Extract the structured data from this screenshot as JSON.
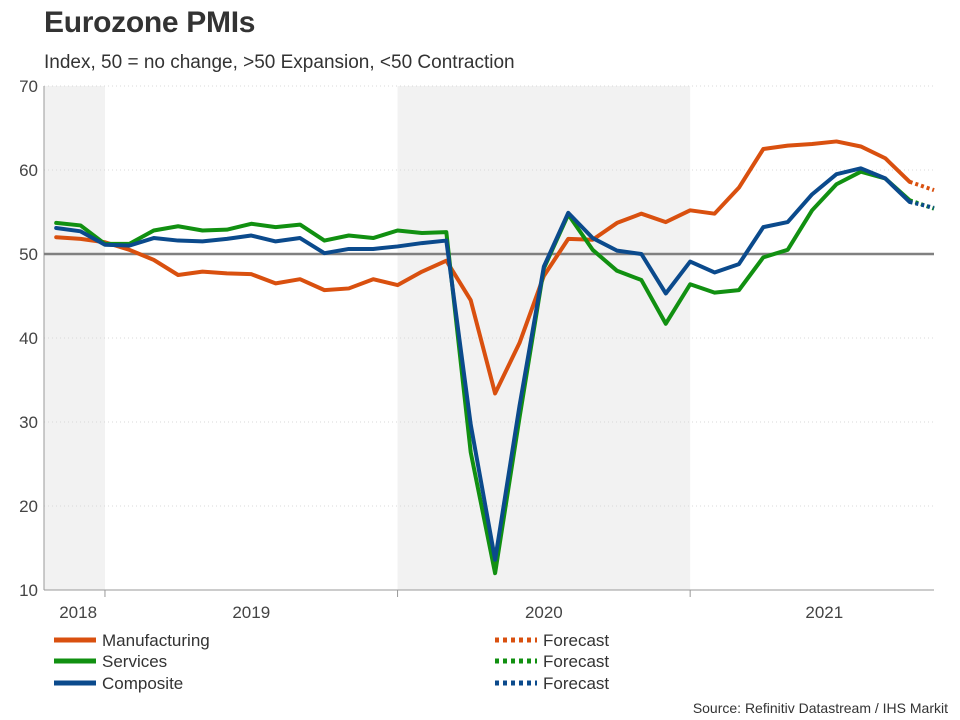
{
  "title": "Eurozone PMIs",
  "subtitle": "Index, 50 = no change, >50 Expansion, <50 Contraction",
  "source": "Source: Refinitiv Datastream / IHS Markit",
  "colors": {
    "manufacturing": "#d9500f",
    "services": "#119011",
    "composite": "#0b4a8c",
    "shading": "#f2f2f2",
    "reference_line": "#808080"
  },
  "chart_data": {
    "type": "line",
    "title": "Eurozone PMIs",
    "subtitle": "Index, 50 = no change, >50 Expansion, <50 Contraction",
    "xlabel": "",
    "ylabel": "",
    "ylim": [
      10,
      70
    ],
    "yticks": [
      10,
      20,
      30,
      40,
      50,
      60,
      70
    ],
    "x_start": "2018-10",
    "x_range_months": [
      0,
      36.5
    ],
    "year_labels": [
      {
        "label": "2018",
        "x": 1.4
      },
      {
        "label": "2019",
        "x": 8.5
      },
      {
        "label": "2020",
        "x": 20.5
      },
      {
        "label": "2021",
        "x": 32.0
      }
    ],
    "year_dividers": [
      2.5,
      14.5,
      26.5
    ],
    "shaded_ranges": [
      [
        0,
        2.5
      ],
      [
        14.5,
        26.5
      ]
    ],
    "reference_line": 50,
    "series": [
      {
        "name": "Manufacturing",
        "key": "manufacturing",
        "values": [
          52.0,
          51.8,
          51.4,
          50.5,
          49.3,
          47.5,
          47.9,
          47.7,
          47.6,
          46.5,
          47.0,
          45.7,
          45.9,
          47.0,
          46.3,
          47.9,
          49.2,
          44.5,
          33.4,
          39.4,
          47.4,
          51.8,
          51.7,
          53.7,
          54.8,
          53.8,
          55.2,
          54.8,
          57.9,
          62.5,
          62.9,
          63.1,
          63.4,
          62.8,
          61.4,
          58.6
        ],
        "forecast": [
          58.6,
          57.6
        ]
      },
      {
        "name": "Services",
        "key": "services",
        "values": [
          53.7,
          53.4,
          51.2,
          51.2,
          52.8,
          53.3,
          52.8,
          52.9,
          53.6,
          53.2,
          53.5,
          51.6,
          52.2,
          51.9,
          52.8,
          52.5,
          52.6,
          26.4,
          12.0,
          30.5,
          48.3,
          54.7,
          50.5,
          48.0,
          46.9,
          41.7,
          46.4,
          45.4,
          45.7,
          49.6,
          50.5,
          55.2,
          58.3,
          59.8,
          59.0,
          56.4
        ],
        "forecast": [
          56.4,
          55.4
        ]
      },
      {
        "name": "Composite",
        "key": "composite",
        "values": [
          53.1,
          52.7,
          51.1,
          51.0,
          51.9,
          51.6,
          51.5,
          51.8,
          52.2,
          51.5,
          51.9,
          50.1,
          50.6,
          50.6,
          50.9,
          51.3,
          51.6,
          29.7,
          13.6,
          31.9,
          48.5,
          54.9,
          51.9,
          50.4,
          50.0,
          45.3,
          49.1,
          47.8,
          48.8,
          53.2,
          53.8,
          57.1,
          59.5,
          60.2,
          59.0,
          56.2
        ],
        "forecast": [
          56.2,
          55.5
        ]
      }
    ],
    "legend": [
      {
        "label": "Manufacturing",
        "key": "manufacturing",
        "style": "solid"
      },
      {
        "label": "Services",
        "key": "services",
        "style": "solid"
      },
      {
        "label": "Composite",
        "key": "composite",
        "style": "solid"
      },
      {
        "label": "Forecast",
        "key": "manufacturing",
        "style": "dotted"
      },
      {
        "label": "Forecast",
        "key": "services",
        "style": "dotted"
      },
      {
        "label": "Forecast",
        "key": "composite",
        "style": "dotted"
      }
    ]
  }
}
